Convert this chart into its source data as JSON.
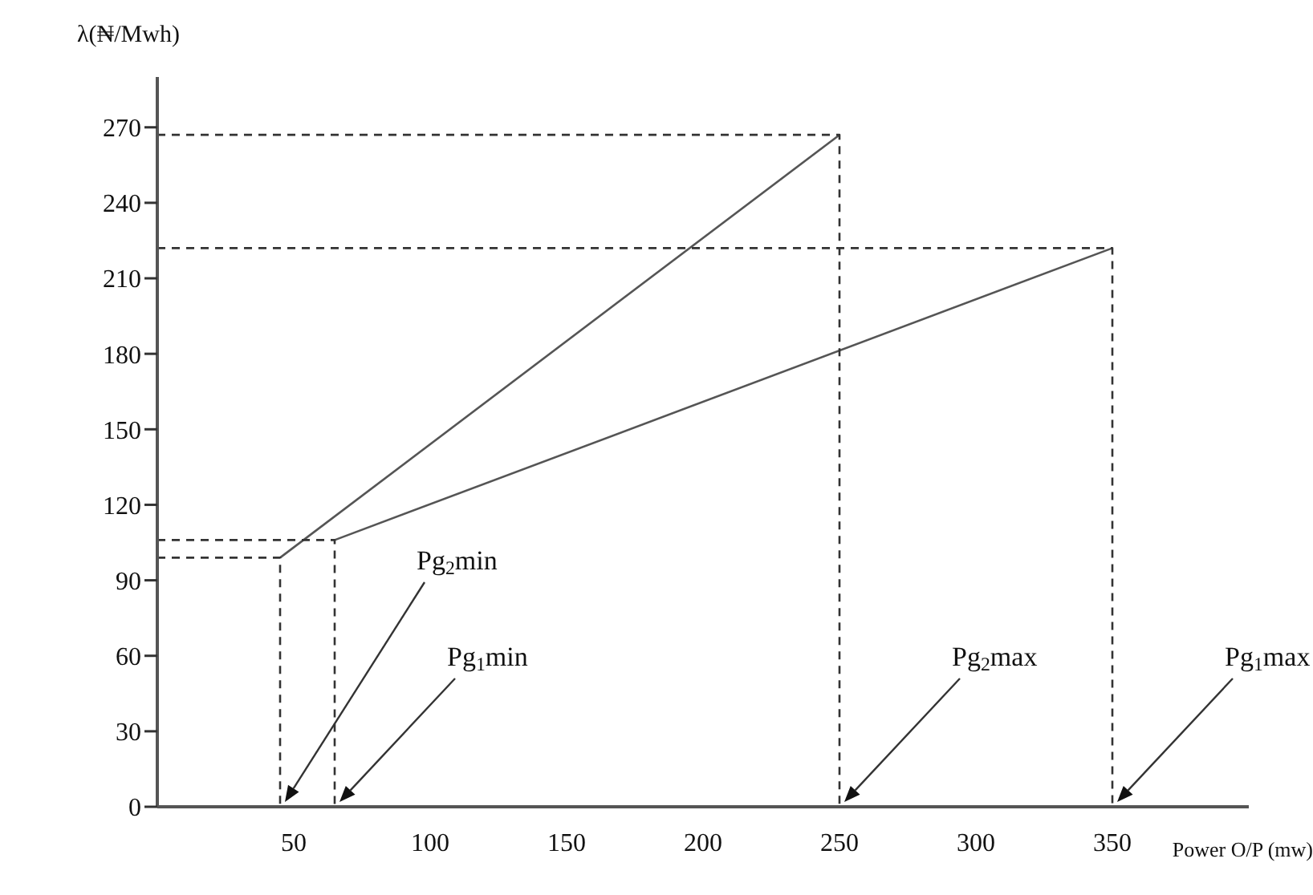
{
  "chart_data": {
    "type": "line",
    "xlabel": "Power O/P (mw)",
    "ylabel": "λ(₦/Mwh)",
    "xlim": [
      0,
      400
    ],
    "ylim": [
      0,
      290
    ],
    "xticks": [
      50,
      100,
      150,
      200,
      250,
      300,
      350
    ],
    "yticks": [
      0,
      30,
      60,
      90,
      120,
      150,
      180,
      210,
      240,
      270
    ],
    "grid": false,
    "legend": false,
    "marker": "none",
    "series": [
      {
        "color": "#555555",
        "x": [
          45,
          250
        ],
        "values": [
          99,
          267
        ],
        "line_style": "solid"
      },
      {
        "color": "#555555",
        "x": [
          65,
          350
        ],
        "values": [
          106,
          222
        ],
        "line_style": "solid"
      },
      {
        "color": "#333333",
        "x": [
          0,
          45,
          45
        ],
        "values": [
          99,
          99,
          0
        ],
        "line_style": "dashed"
      },
      {
        "color": "#333333",
        "x": [
          0,
          65,
          65
        ],
        "values": [
          106,
          106,
          0
        ],
        "line_style": "dashed"
      },
      {
        "color": "#333333",
        "x": [
          0,
          250,
          250
        ],
        "values": [
          267,
          267,
          0
        ],
        "line_style": "dashed"
      },
      {
        "color": "#333333",
        "x": [
          0,
          350,
          350
        ],
        "values": [
          222,
          222,
          0
        ],
        "line_style": "dashed"
      }
    ],
    "annotations": [
      "Pg$_{2}$min",
      "Pg$_{1}$min",
      "Pg$_{2}$max",
      "Pg$_{1}$max"
    ]
  }
}
